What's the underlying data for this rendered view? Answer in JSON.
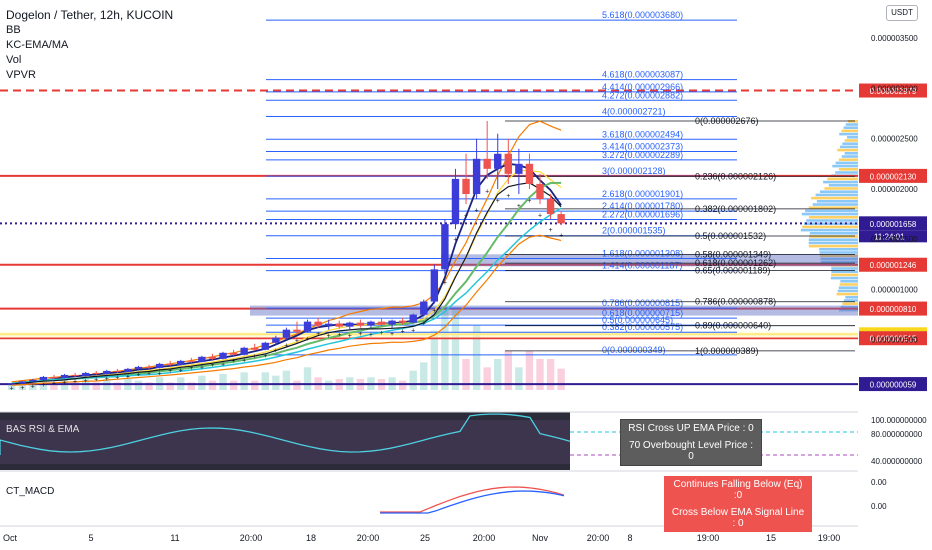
{
  "legend": {
    "title": "Dogelon / Tether, 12h, KUCOIN",
    "lines": [
      "BB",
      "KC-EMA/MA",
      "Vol",
      "VPVR"
    ]
  },
  "currency_badge": "USDT",
  "subpanes": {
    "rsi_label": "BAS RSI & EMA",
    "macd_label": "CT_MACD",
    "rsi_box": [
      "RSI Cross UP EMA Price : 0",
      "70 Overbought Level Price : 0"
    ],
    "macd_box": [
      "Continues Falling Below (Eq) :0",
      "Cross Below EMA Signal Line : 0"
    ]
  },
  "colors": {
    "up_candle": "#3c3cd8",
    "down_candle": "#ef5350",
    "fib_blue": "#2962ff",
    "fib_black": "#131722",
    "red_line": "#e53935",
    "dash_red": "#e53935",
    "price_blue": "#311b92"
  },
  "chart_data": {
    "type": "candlestick",
    "title": "Dogelon / Tether, 12h, KUCOIN",
    "x_ticks": [
      "Oct",
      "5",
      "11",
      "20:00",
      "18",
      "20:00",
      "25",
      "20:00",
      "Nov",
      "20:00",
      "8",
      "19:00",
      "15",
      "19:00"
    ],
    "y_ticks": [
      "0.000003500",
      "0.000003000",
      "0.000002500",
      "0.000002000",
      "0.000001500",
      "0.000001000",
      "0.000000500"
    ],
    "price_tags": [
      {
        "label": "0.000002979",
        "value": 2.979e-06,
        "color": "#e53935"
      },
      {
        "label": "0.000002130",
        "value": 2.13e-06,
        "color": "#e53935"
      },
      {
        "label": "0.000001658",
        "value": 1.658e-06,
        "color": "#311b92",
        "sub": "11:24:01"
      },
      {
        "label": "0.000001246",
        "value": 1.246e-06,
        "color": "#e53935"
      },
      {
        "label": "0.000000810",
        "value": 8.1e-07,
        "color": "#e53935"
      },
      {
        "label": "0.000000554",
        "value": 5.54e-07,
        "color": "#f9d71c"
      },
      {
        "label": "0.000000515",
        "value": 5.15e-07,
        "color": "#e53935"
      },
      {
        "label": "0.000000059",
        "value": 5.9e-08,
        "color": "#311b92"
      }
    ],
    "fib_extension_labels": [
      {
        "label": "5.618(0.000003680)",
        "value": 3.68e-06
      },
      {
        "label": "4.618(0.000003087)",
        "value": 3.087e-06
      },
      {
        "label": "4.414(0.000002966)",
        "value": 2.966e-06
      },
      {
        "label": "4.272(0.000002882)",
        "value": 2.882e-06
      },
      {
        "label": "4(0.000002721)",
        "value": 2.721e-06
      },
      {
        "label": "3.618(0.000002494)",
        "value": 2.494e-06
      },
      {
        "label": "3.414(0.000002373)",
        "value": 2.373e-06
      },
      {
        "label": "3.272(0.000002289)",
        "value": 2.289e-06
      },
      {
        "label": "3(0.000002128)",
        "value": 2.128e-06
      },
      {
        "label": "2.618(0.000001901)",
        "value": 1.901e-06
      },
      {
        "label": "2.414(0.000001780)",
        "value": 1.78e-06
      },
      {
        "label": "2.272(0.000001696)",
        "value": 1.696e-06
      },
      {
        "label": "2(0.000001535)",
        "value": 1.535e-06
      },
      {
        "label": "1.618(0.000001308)",
        "value": 1.308e-06
      },
      {
        "label": "1.414(0.000001187)",
        "value": 1.187e-06
      },
      {
        "label": "0.786(0.000000815)",
        "value": 8.15e-07
      },
      {
        "label": "0.618(0.000000715)",
        "value": 7.15e-07
      },
      {
        "label": "0.5(0.000000645)",
        "value": 6.45e-07
      },
      {
        "label": "0.382(0.000000575)",
        "value": 5.75e-07
      },
      {
        "label": "0(0.000000349)",
        "value": 3.49e-07
      }
    ],
    "fib_retracement_labels": [
      {
        "label": "0(0.000002676)",
        "value": 2.676e-06
      },
      {
        "label": "0.236(0.000002126)",
        "value": 2.126e-06
      },
      {
        "label": "0.382(0.000001802)",
        "value": 1.802e-06
      },
      {
        "label": "0.5(0.000001532)",
        "value": 1.532e-06
      },
      {
        "label": "0.58(0.000001349)",
        "value": 1.349e-06
      },
      {
        "label": "0.618(0.000001262)",
        "value": 1.262e-06
      },
      {
        "label": "0.65(0.000001189)",
        "value": 1.189e-06
      },
      {
        "label": "0.786(0.000000878)",
        "value": 8.78e-07
      },
      {
        "label": "0.89(0.000000640)",
        "value": 6.4e-07
      },
      {
        "label": "1(0.000000389)",
        "value": 3.89e-07
      }
    ],
    "candles": [
      {
        "o": 6e-08,
        "h": 7e-08,
        "l": 5.5e-08,
        "c": 6.5e-08
      },
      {
        "o": 6.5e-08,
        "h": 9e-08,
        "l": 6e-08,
        "c": 8.5e-08
      },
      {
        "o": 8.5e-08,
        "h": 1.1e-07,
        "l": 8e-08,
        "c": 1e-07
      },
      {
        "o": 1e-07,
        "h": 1.4e-07,
        "l": 9.5e-08,
        "c": 1.3e-07
      },
      {
        "o": 1.3e-07,
        "h": 1.5e-07,
        "l": 1.1e-07,
        "c": 1.2e-07
      },
      {
        "o": 1.2e-07,
        "h": 1.6e-07,
        "l": 1.15e-07,
        "c": 1.5e-07
      },
      {
        "o": 1.5e-07,
        "h": 1.7e-07,
        "l": 1.3e-07,
        "c": 1.4e-07
      },
      {
        "o": 1.4e-07,
        "h": 1.8e-07,
        "l": 1.35e-07,
        "c": 1.7e-07
      },
      {
        "o": 1.7e-07,
        "h": 1.9e-07,
        "l": 1.5e-07,
        "c": 1.6e-07
      },
      {
        "o": 1.6e-07,
        "h": 2e-07,
        "l": 1.55e-07,
        "c": 1.9e-07
      },
      {
        "o": 1.9e-07,
        "h": 2.1e-07,
        "l": 1.7e-07,
        "c": 1.8e-07
      },
      {
        "o": 1.8e-07,
        "h": 2.2e-07,
        "l": 1.75e-07,
        "c": 2.1e-07
      },
      {
        "o": 2.1e-07,
        "h": 2.4e-07,
        "l": 2e-07,
        "c": 2.3e-07
      },
      {
        "o": 2.3e-07,
        "h": 2.5e-07,
        "l": 2.1e-07,
        "c": 2.2e-07
      },
      {
        "o": 2.2e-07,
        "h": 2.7e-07,
        "l": 2.15e-07,
        "c": 2.6e-07
      },
      {
        "o": 2.6e-07,
        "h": 2.9e-07,
        "l": 2.4e-07,
        "c": 2.5e-07
      },
      {
        "o": 2.5e-07,
        "h": 3e-07,
        "l": 2.45e-07,
        "c": 2.9e-07
      },
      {
        "o": 2.9e-07,
        "h": 3.2e-07,
        "l": 2.7e-07,
        "c": 2.8e-07
      },
      {
        "o": 2.8e-07,
        "h": 3.4e-07,
        "l": 2.75e-07,
        "c": 3.3e-07
      },
      {
        "o": 3.3e-07,
        "h": 3.6e-07,
        "l": 3e-07,
        "c": 3.1e-07
      },
      {
        "o": 3.1e-07,
        "h": 3.8e-07,
        "l": 3.05e-07,
        "c": 3.7e-07
      },
      {
        "o": 3.7e-07,
        "h": 4e-07,
        "l": 3.4e-07,
        "c": 3.5e-07
      },
      {
        "o": 3.5e-07,
        "h": 4.3e-07,
        "l": 3.45e-07,
        "c": 4.2e-07
      },
      {
        "o": 4.2e-07,
        "h": 4.6e-07,
        "l": 3.9e-07,
        "c": 4e-07
      },
      {
        "o": 4e-07,
        "h": 4.8e-07,
        "l": 3.95e-07,
        "c": 4.7e-07
      },
      {
        "o": 4.7e-07,
        "h": 5.4e-07,
        "l": 4.5e-07,
        "c": 5.2e-07
      },
      {
        "o": 5.2e-07,
        "h": 6.2e-07,
        "l": 5e-07,
        "c": 6e-07
      },
      {
        "o": 6e-07,
        "h": 6.8e-07,
        "l": 5.5e-07,
        "c": 5.8e-07
      },
      {
        "o": 5.8e-07,
        "h": 7e-07,
        "l": 5.7e-07,
        "c": 6.8e-07
      },
      {
        "o": 6.8e-07,
        "h": 7.2e-07,
        "l": 6.2e-07,
        "c": 6.4e-07
      },
      {
        "o": 6.4e-07,
        "h": 7e-07,
        "l": 6e-07,
        "c": 6.6e-07
      },
      {
        "o": 6.6e-07,
        "h": 6.9e-07,
        "l": 6.1e-07,
        "c": 6.3e-07
      },
      {
        "o": 6.3e-07,
        "h": 6.8e-07,
        "l": 6e-07,
        "c": 6.7e-07
      },
      {
        "o": 6.7e-07,
        "h": 7e-07,
        "l": 6.2e-07,
        "c": 6.4e-07
      },
      {
        "o": 6.4e-07,
        "h": 6.9e-07,
        "l": 6.1e-07,
        "c": 6.8e-07
      },
      {
        "o": 6.8e-07,
        "h": 7.1e-07,
        "l": 6.3e-07,
        "c": 6.5e-07
      },
      {
        "o": 6.5e-07,
        "h": 7e-07,
        "l": 6.2e-07,
        "c": 6.9e-07
      },
      {
        "o": 6.9e-07,
        "h": 7.2e-07,
        "l": 6.5e-07,
        "c": 6.7e-07
      },
      {
        "o": 6.7e-07,
        "h": 7.6e-07,
        "l": 6.6e-07,
        "c": 7.5e-07
      },
      {
        "o": 7.5e-07,
        "h": 9e-07,
        "l": 7.3e-07,
        "c": 8.8e-07
      },
      {
        "o": 8.8e-07,
        "h": 1.25e-06,
        "l": 8.6e-07,
        "c": 1.2e-06
      },
      {
        "o": 1.2e-06,
        "h": 1.7e-06,
        "l": 1.15e-06,
        "c": 1.65e-06
      },
      {
        "o": 1.65e-06,
        "h": 2.2e-06,
        "l": 1.6e-06,
        "c": 2.1e-06
      },
      {
        "o": 2.1e-06,
        "h": 2.35e-06,
        "l": 1.85e-06,
        "c": 1.95e-06
      },
      {
        "o": 1.95e-06,
        "h": 2.5e-06,
        "l": 1.9e-06,
        "c": 2.3e-06
      },
      {
        "o": 2.3e-06,
        "h": 2.676e-06,
        "l": 2.1e-06,
        "c": 2.2e-06
      },
      {
        "o": 2.2e-06,
        "h": 2.55e-06,
        "l": 2e-06,
        "c": 2.35e-06
      },
      {
        "o": 2.35e-06,
        "h": 2.5e-06,
        "l": 2.05e-06,
        "c": 2.15e-06
      },
      {
        "o": 2.15e-06,
        "h": 2.4e-06,
        "l": 1.95e-06,
        "c": 2.25e-06
      },
      {
        "o": 2.25e-06,
        "h": 2.35e-06,
        "l": 2e-06,
        "c": 2.05e-06
      },
      {
        "o": 2.05e-06,
        "h": 2.15e-06,
        "l": 1.85e-06,
        "c": 1.9e-06
      },
      {
        "o": 1.9e-06,
        "h": 1.95e-06,
        "l": 1.7e-06,
        "c": 1.75e-06
      },
      {
        "o": 1.75e-06,
        "h": 1.78e-06,
        "l": 1.64e-06,
        "c": 1.658e-06
      }
    ],
    "ylim": [
      0.0,
      3.8e-06
    ]
  }
}
